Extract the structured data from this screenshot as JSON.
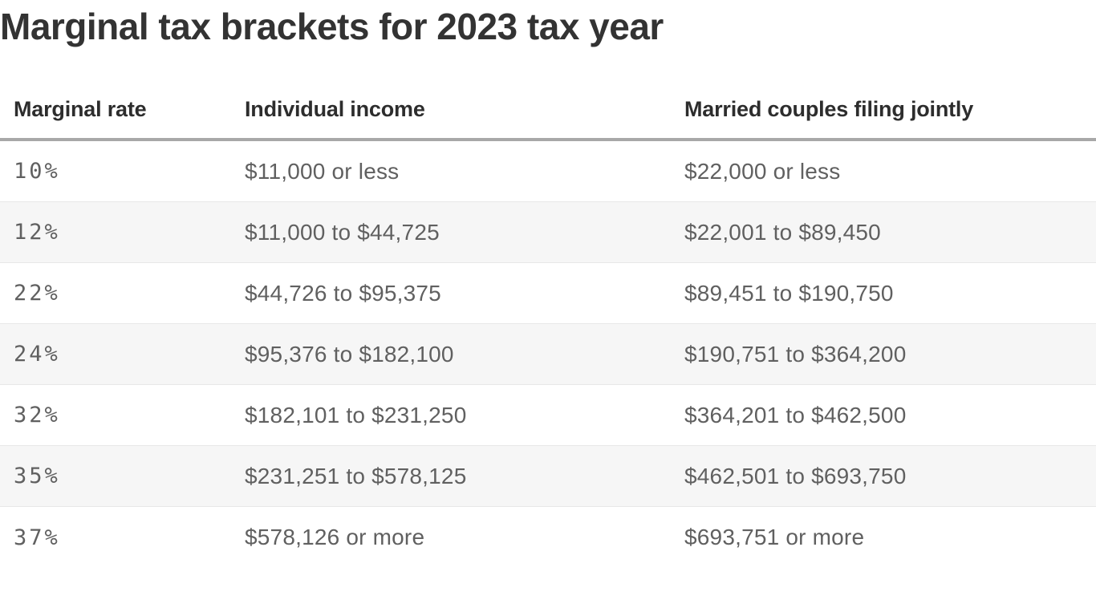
{
  "title": "Marginal tax brackets for 2023 tax year",
  "table": {
    "columns": [
      "Marginal rate",
      "Individual income",
      "Married couples filing jointly"
    ],
    "rows": [
      {
        "rate": "10%",
        "individual": "$11,000 or less",
        "married": "$22,000 or less"
      },
      {
        "rate": "12%",
        "individual": "$11,000 to $44,725",
        "married": "$22,001 to $89,450"
      },
      {
        "rate": "22%",
        "individual": "$44,726 to $95,375",
        "married": "$89,451 to $190,750"
      },
      {
        "rate": "24%",
        "individual": "$95,376 to $182,100",
        "married": "$190,751 to $364,200"
      },
      {
        "rate": "32%",
        "individual": "$182,101 to $231,250",
        "married": "$364,201 to $462,500"
      },
      {
        "rate": "35%",
        "individual": "$231,251 to $578,125",
        "married": "$462,501 to $693,750"
      },
      {
        "rate": "37%",
        "individual": "$578,126 or more",
        "married": "$693,751 or more"
      }
    ]
  },
  "colors": {
    "title_text": "#333333",
    "header_text": "#2d2d2d",
    "body_text": "#606060",
    "alt_row_background": "#f6f6f6",
    "row_divider": "#e8e8e8",
    "header_rule": "#a8a8a8",
    "page_background": "#ffffff"
  },
  "chart_data": {
    "type": "table",
    "title": "Marginal tax brackets for 2023 tax year",
    "columns": [
      "Marginal rate",
      "Individual income",
      "Married couples filing jointly"
    ],
    "rows": [
      [
        "10%",
        "$11,000 or less",
        "$22,000 or less"
      ],
      [
        "12%",
        "$11,000 to $44,725",
        "$22,001 to $89,450"
      ],
      [
        "22%",
        "$44,726 to $95,375",
        "$89,451 to $190,750"
      ],
      [
        "24%",
        "$95,376 to $182,100",
        "$190,751 to $364,200"
      ],
      [
        "32%",
        "$182,101 to $231,250",
        "$364,201 to $462,500"
      ],
      [
        "35%",
        "$231,251 to $578,125",
        "$462,501 to $693,750"
      ],
      [
        "37%",
        "$578,126 or more",
        "$693,751 or more"
      ]
    ],
    "marginal_rates_percent": [
      10,
      12,
      22,
      24,
      32,
      35,
      37
    ],
    "individual_income_upper_bounds_usd": [
      11000,
      44725,
      95375,
      182100,
      231250,
      578125,
      null
    ],
    "married_joint_income_upper_bounds_usd": [
      22000,
      89450,
      190750,
      364200,
      462500,
      693750,
      null
    ]
  }
}
